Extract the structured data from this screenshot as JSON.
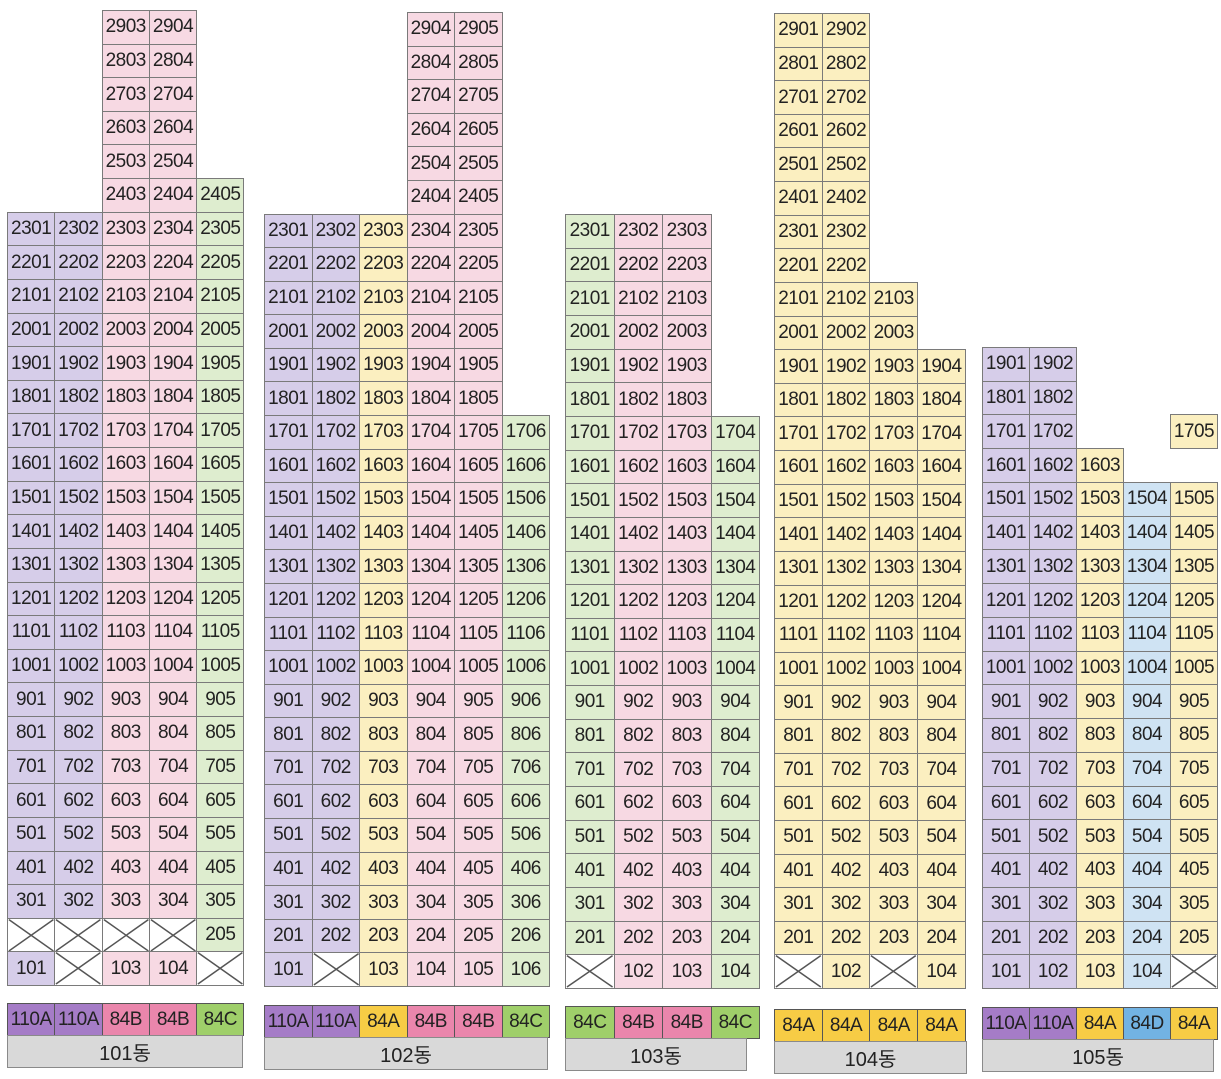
{
  "colors": {
    "110A": "#d6cde9",
    "84B": "#f7d9e3",
    "84C": "#deedcf",
    "84A": "#fbefc0",
    "84D": "#cfe3f3",
    "void": "#ffffff"
  },
  "type_colors": {
    "110A": "#a57cc7",
    "84B": "#ea86ac",
    "84C": "#9fcf6a",
    "84A": "#f7cc45",
    "84D": "#72b3e3"
  },
  "buildings": [
    {
      "name": "101동",
      "columns": [
        {
          "type": "110A",
          "top": 23,
          "missing": [
            2
          ]
        },
        {
          "type": "110A",
          "top": 23,
          "missing": [
            1,
            2
          ]
        },
        {
          "type": "84B",
          "top": 29,
          "missing": [
            2
          ]
        },
        {
          "type": "84B",
          "top": 29,
          "missing": [
            2
          ]
        },
        {
          "type": "84C",
          "top": 24,
          "missing": [
            1
          ]
        }
      ]
    },
    {
      "name": "102동",
      "columns": [
        {
          "type": "110A",
          "top": 23,
          "missing": []
        },
        {
          "type": "110A",
          "top": 23,
          "missing": [
            1
          ]
        },
        {
          "type": "84A",
          "top": 23,
          "missing": []
        },
        {
          "type": "84B",
          "top": 29,
          "missing": []
        },
        {
          "type": "84B",
          "top": 29,
          "missing": []
        },
        {
          "type": "84C",
          "top": 17,
          "missing": []
        }
      ]
    },
    {
      "name": "103동",
      "columns": [
        {
          "type": "84C",
          "top": 23,
          "missing": [
            1
          ]
        },
        {
          "type": "84B",
          "top": 23,
          "missing": []
        },
        {
          "type": "84B",
          "top": 23,
          "missing": []
        },
        {
          "type": "84C",
          "top": 17,
          "missing": []
        }
      ]
    },
    {
      "name": "104동",
      "columns": [
        {
          "type": "84A",
          "top": 29,
          "missing": [
            1
          ]
        },
        {
          "type": "84A",
          "top": 29,
          "missing": []
        },
        {
          "type": "84A",
          "top": 21,
          "missing": [
            1
          ]
        },
        {
          "type": "84A",
          "top": 19,
          "missing": []
        }
      ]
    },
    {
      "name": "105동",
      "columns": [
        {
          "type": "110A",
          "top": 19,
          "missing": []
        },
        {
          "type": "110A",
          "top": 19,
          "missing": []
        },
        {
          "type": "84A",
          "top": 16,
          "missing": []
        },
        {
          "type": "84D",
          "top": 15,
          "missing": []
        },
        {
          "type": "84A",
          "top": 17,
          "missing": [
            1,
            16
          ]
        }
      ]
    }
  ]
}
